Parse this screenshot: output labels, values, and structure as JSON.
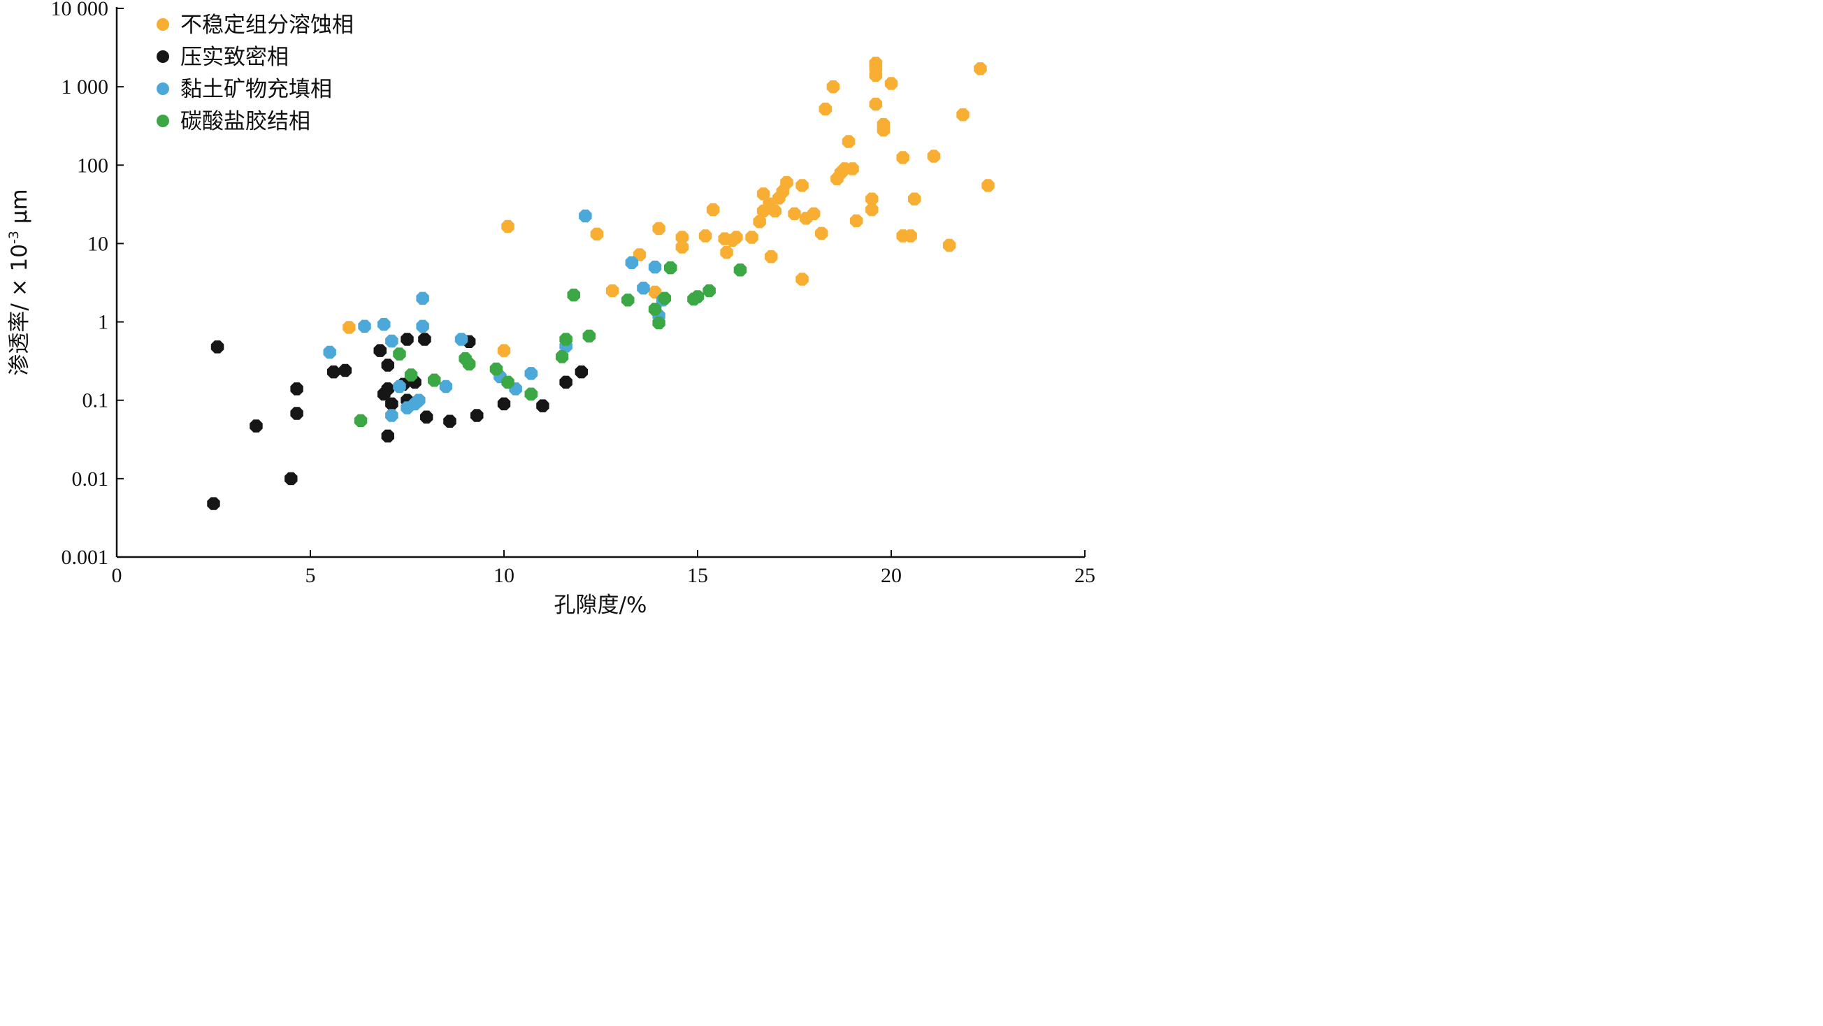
{
  "chart_data": {
    "type": "scatter",
    "xlabel": "孔隙度/%",
    "ylabel": "渗透率/ × 10",
    "ylabel_exponent": "-3",
    "ylabel_unit": " μm",
    "xlim": [
      0,
      25
    ],
    "ylim": [
      0.001,
      10000
    ],
    "yscale": "log",
    "xticks": [
      0,
      5,
      10,
      15,
      20,
      25
    ],
    "xtick_labels": [
      "0",
      "5",
      "10",
      "15",
      "20",
      "25"
    ],
    "yticks": [
      0.001,
      0.01,
      0.1,
      1,
      10,
      100,
      1000,
      10000
    ],
    "ytick_labels": [
      "0.001",
      "0.01",
      "0.1",
      "1",
      "10",
      "100",
      "1 000",
      "10 000"
    ],
    "grid": false,
    "legend_position": "top-left",
    "series": [
      {
        "name": "不稳定组分溶蚀相",
        "color": "#F7AE32",
        "points": [
          [
            6.0,
            0.85
          ],
          [
            10.0,
            0.43
          ],
          [
            10.1,
            16.5
          ],
          [
            12.4,
            13.2
          ],
          [
            12.8,
            2.5
          ],
          [
            13.5,
            7.2
          ],
          [
            13.9,
            2.4
          ],
          [
            14.0,
            15.5
          ],
          [
            14.6,
            12.0
          ],
          [
            14.6,
            9.0
          ],
          [
            15.2,
            12.5
          ],
          [
            15.4,
            27.0
          ],
          [
            15.7,
            11.5
          ],
          [
            15.75,
            7.7
          ],
          [
            15.9,
            11.0
          ],
          [
            16.0,
            12.0
          ],
          [
            16.4,
            12.0
          ],
          [
            16.6,
            19.0
          ],
          [
            16.7,
            26.0
          ],
          [
            16.7,
            43.0
          ],
          [
            16.85,
            32.0
          ],
          [
            16.9,
            6.8
          ],
          [
            17.0,
            26.0
          ],
          [
            17.1,
            38.0
          ],
          [
            17.2,
            46.0
          ],
          [
            17.3,
            60.0
          ],
          [
            17.5,
            24.0
          ],
          [
            17.7,
            55.0
          ],
          [
            17.7,
            3.5
          ],
          [
            17.8,
            21.0
          ],
          [
            18.0,
            24.0
          ],
          [
            18.2,
            13.5
          ],
          [
            18.3,
            520.0
          ],
          [
            18.5,
            1000.0
          ],
          [
            18.6,
            67.0
          ],
          [
            18.7,
            80.0
          ],
          [
            18.8,
            90.0
          ],
          [
            18.9,
            200.0
          ],
          [
            19.0,
            90.0
          ],
          [
            19.1,
            19.5
          ],
          [
            19.5,
            27.0
          ],
          [
            19.5,
            37.0
          ],
          [
            19.6,
            1700.0
          ],
          [
            19.6,
            2000.0
          ],
          [
            19.6,
            1400.0
          ],
          [
            19.6,
            600.0
          ],
          [
            19.8,
            330.0
          ],
          [
            19.8,
            280.0
          ],
          [
            20.0,
            1100.0
          ],
          [
            20.3,
            125.0
          ],
          [
            20.3,
            12.5
          ],
          [
            20.5,
            12.5
          ],
          [
            20.6,
            37.0
          ],
          [
            21.1,
            130.0
          ],
          [
            21.5,
            9.5
          ],
          [
            21.85,
            440.0
          ],
          [
            22.3,
            1700.0
          ],
          [
            22.5,
            55.0
          ]
        ]
      },
      {
        "name": "压实致密相",
        "color": "#161616",
        "points": [
          [
            2.5,
            0.0048
          ],
          [
            2.6,
            0.48
          ],
          [
            3.6,
            0.047
          ],
          [
            4.5,
            0.01
          ],
          [
            4.65,
            0.14
          ],
          [
            4.65,
            0.068
          ],
          [
            5.6,
            0.23
          ],
          [
            5.9,
            0.24
          ],
          [
            6.8,
            0.43
          ],
          [
            6.9,
            0.12
          ],
          [
            7.0,
            0.035
          ],
          [
            7.0,
            0.28
          ],
          [
            7.0,
            0.14
          ],
          [
            7.1,
            0.09
          ],
          [
            7.4,
            0.16
          ],
          [
            7.5,
            0.6
          ],
          [
            7.5,
            0.1
          ],
          [
            7.7,
            0.17
          ],
          [
            7.8,
            0.1
          ],
          [
            7.95,
            0.6
          ],
          [
            8.0,
            0.061
          ],
          [
            8.2,
            0.18
          ],
          [
            8.6,
            0.054
          ],
          [
            9.1,
            0.56
          ],
          [
            9.3,
            0.064
          ],
          [
            10.0,
            0.09
          ],
          [
            11.0,
            0.085
          ],
          [
            11.6,
            0.17
          ],
          [
            12.0,
            0.23
          ]
        ]
      },
      {
        "name": "黏土矿物充填相",
        "color": "#4DA8DA",
        "points": [
          [
            5.5,
            0.41
          ],
          [
            6.4,
            0.88
          ],
          [
            6.9,
            0.93
          ],
          [
            7.1,
            0.57
          ],
          [
            7.1,
            0.064
          ],
          [
            7.3,
            0.15
          ],
          [
            7.5,
            0.08
          ],
          [
            7.7,
            0.09
          ],
          [
            7.8,
            0.1
          ],
          [
            7.9,
            2.0
          ],
          [
            7.9,
            0.88
          ],
          [
            8.5,
            0.15
          ],
          [
            8.9,
            0.6
          ],
          [
            9.9,
            0.2
          ],
          [
            10.3,
            0.14
          ],
          [
            10.7,
            0.22
          ],
          [
            11.6,
            0.49
          ],
          [
            12.1,
            22.5
          ],
          [
            13.3,
            5.7
          ],
          [
            13.6,
            2.7
          ],
          [
            13.9,
            5.0
          ],
          [
            14.0,
            1.2
          ],
          [
            14.1,
            1.9
          ]
        ]
      },
      {
        "name": "碳酸盐胶结相",
        "color": "#3CA845",
        "points": [
          [
            6.3,
            0.055
          ],
          [
            7.3,
            0.39
          ],
          [
            7.6,
            0.21
          ],
          [
            8.2,
            0.18
          ],
          [
            9.0,
            0.34
          ],
          [
            9.1,
            0.29
          ],
          [
            9.8,
            0.25
          ],
          [
            10.1,
            0.17
          ],
          [
            10.7,
            0.12
          ],
          [
            11.5,
            0.36
          ],
          [
            11.6,
            0.6
          ],
          [
            11.8,
            2.2
          ],
          [
            12.2,
            0.66
          ],
          [
            13.2,
            1.9
          ],
          [
            13.9,
            1.45
          ],
          [
            14.0,
            0.97
          ],
          [
            14.15,
            2.0
          ],
          [
            14.3,
            4.9
          ],
          [
            14.9,
            1.95
          ],
          [
            15.0,
            2.1
          ],
          [
            15.3,
            2.5
          ],
          [
            16.1,
            4.6
          ]
        ]
      }
    ]
  }
}
